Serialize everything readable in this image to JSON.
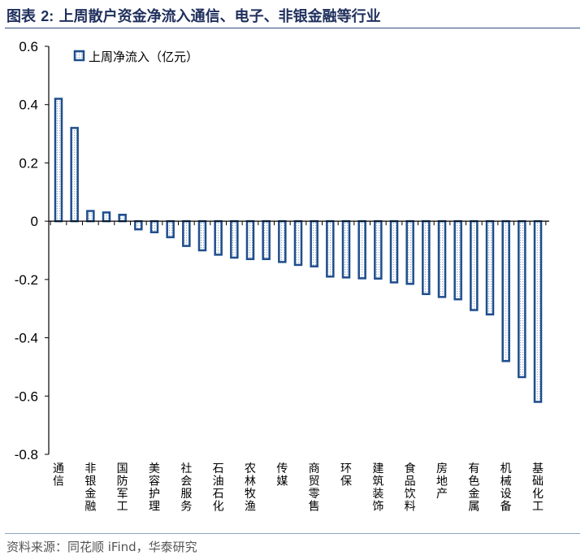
{
  "header": {
    "title_prefix": "图表",
    "title_num": "2:",
    "title_text": "上周散户资金净流入通信、电子、非银金融等行业"
  },
  "source": "资料来源：同花顺 iFind，华泰研究",
  "colors": {
    "bar": "#1f4e8c",
    "fill_pattern": "#d9e4f2",
    "axis": "#000000",
    "title": "#1f2f5c"
  },
  "chart_data": {
    "type": "bar",
    "series": [
      {
        "name": "上周净流入（亿元）",
        "values": [
          0.42,
          0.32,
          0.035,
          0.03,
          0.022,
          -0.028,
          -0.038,
          -0.055,
          -0.085,
          -0.1,
          -0.115,
          -0.125,
          -0.13,
          -0.13,
          -0.14,
          -0.15,
          -0.155,
          -0.19,
          -0.193,
          -0.196,
          -0.197,
          -0.21,
          -0.215,
          -0.25,
          -0.26,
          -0.268,
          -0.305,
          -0.32,
          -0.48,
          -0.535,
          -0.62
        ]
      }
    ],
    "categories": [
      "通信",
      "",
      "非银金融",
      "",
      "国防军工",
      "",
      "美容护理",
      "",
      "社会服务",
      "",
      "石油石化",
      "",
      "农林牧渔",
      "",
      "传媒",
      "",
      "商贸零售",
      "",
      "环保",
      "",
      "建筑装饰",
      "",
      "食品饮料",
      "",
      "房地产",
      "",
      "有色金属",
      "",
      "机械设备",
      "",
      "基础化工"
    ],
    "ylim": [
      -0.8,
      0.6
    ],
    "yticks": [
      "0.6",
      "0.4",
      "0.2",
      "0",
      "-0.2",
      "-0.4",
      "-0.6",
      "-0.8"
    ],
    "legend": "top-left",
    "grid": false
  }
}
